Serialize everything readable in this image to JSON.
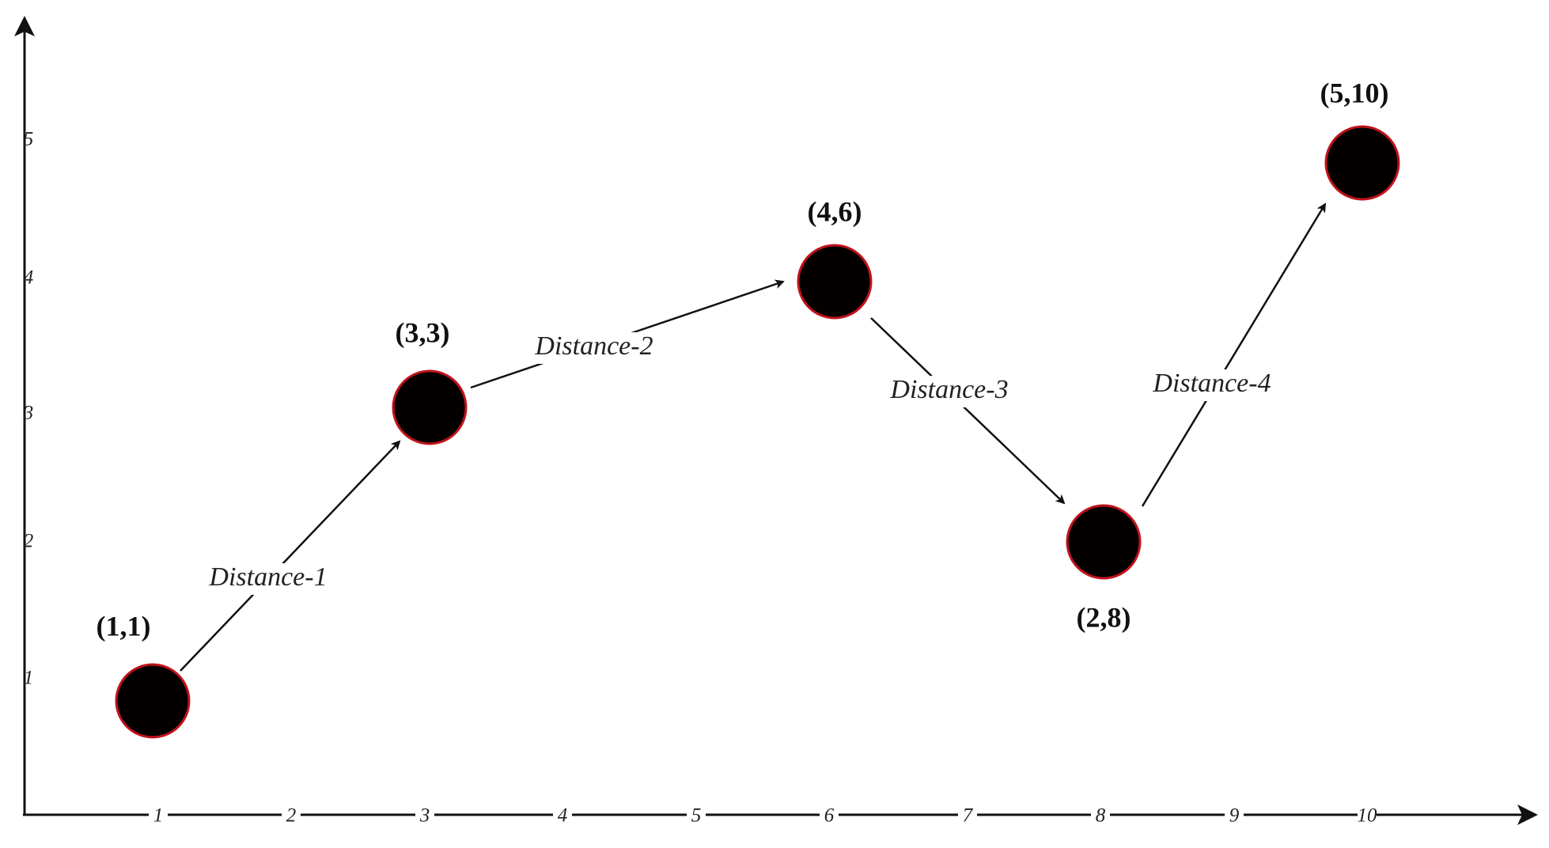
{
  "x_axis": {
    "ticks": [
      1,
      2,
      3,
      4,
      5,
      6,
      7,
      8,
      9,
      10
    ]
  },
  "y_axis": {
    "ticks": [
      1,
      2,
      3,
      4,
      5
    ]
  },
  "nodes": [
    {
      "label": "(1,1)"
    },
    {
      "label": "(3,3)"
    },
    {
      "label": "(4,6)"
    },
    {
      "label": "(2,8)"
    },
    {
      "label": "(5,10)"
    }
  ],
  "edges": [
    {
      "label": "Distance-1"
    },
    {
      "label": "Distance-2"
    },
    {
      "label": "Distance-3"
    },
    {
      "label": "Distance-4"
    }
  ]
}
